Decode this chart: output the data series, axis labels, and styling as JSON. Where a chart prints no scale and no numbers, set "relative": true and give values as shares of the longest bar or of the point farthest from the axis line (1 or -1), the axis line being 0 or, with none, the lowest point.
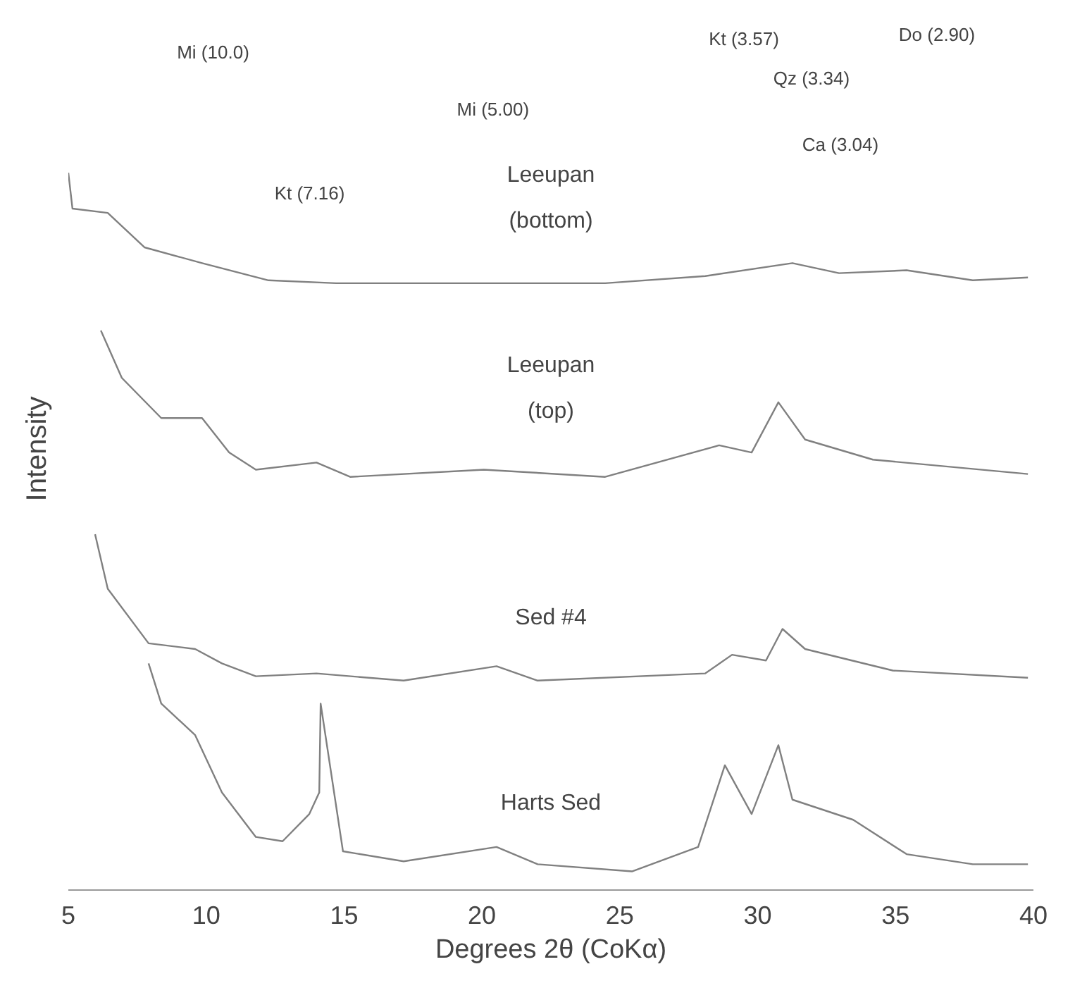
{
  "chart_data": {
    "type": "line",
    "relative": true,
    "xlabel": "Degrees 2θ (CoKα)",
    "ylabel": "Intensity",
    "xlim": [
      5,
      40
    ],
    "xticks": [
      5,
      10,
      15,
      20,
      25,
      30,
      35,
      40
    ],
    "grid": false,
    "marker": "none",
    "series": [
      {
        "name": "Leeupan (bottom)",
        "color": "#808080",
        "x": [
          5.0,
          5.15,
          6.43,
          7.76,
          9.85,
          12.26,
          14.71,
          19.56,
          24.47,
          28.1,
          31.26,
          32.95,
          35.4,
          37.8,
          39.8
        ],
        "values": [
          1.0,
          0.95,
          0.944,
          0.896,
          0.874,
          0.85,
          0.846,
          0.846,
          0.846,
          0.856,
          0.874,
          0.86,
          0.864,
          0.85,
          0.854
        ]
      },
      {
        "name": "Leeupan (top)",
        "color": "#808080",
        "x": [
          6.18,
          6.94,
          8.37,
          9.85,
          10.83,
          11.8,
          14.0,
          15.22,
          20.07,
          24.47,
          28.6,
          29.78,
          30.75,
          31.72,
          34.18,
          39.8
        ],
        "values": [
          0.78,
          0.714,
          0.658,
          0.658,
          0.61,
          0.586,
          0.596,
          0.576,
          0.586,
          0.576,
          0.62,
          0.61,
          0.68,
          0.628,
          0.6,
          0.58
        ]
      },
      {
        "name": "Sed #4",
        "color": "#808080",
        "x": [
          5.97,
          6.43,
          7.91,
          9.6,
          10.57,
          11.8,
          14.0,
          17.16,
          20.53,
          22.02,
          28.1,
          29.07,
          30.3,
          30.9,
          31.72,
          34.9,
          39.8
        ],
        "values": [
          0.496,
          0.42,
          0.344,
          0.336,
          0.316,
          0.298,
          0.302,
          0.292,
          0.312,
          0.292,
          0.302,
          0.328,
          0.32,
          0.364,
          0.336,
          0.306,
          0.296
        ]
      },
      {
        "name": "Harts Sed",
        "color": "#808080",
        "x": [
          7.91,
          8.37,
          9.6,
          10.57,
          11.8,
          12.77,
          13.74,
          14.1,
          14.15,
          14.96,
          17.16,
          20.53,
          22.02,
          25.44,
          27.84,
          28.81,
          29.78,
          30.75,
          31.26,
          33.46,
          35.4,
          37.8,
          39.8
        ],
        "values": [
          0.316,
          0.26,
          0.216,
          0.136,
          0.074,
          0.068,
          0.106,
          0.136,
          0.26,
          0.054,
          0.04,
          0.06,
          0.036,
          0.026,
          0.06,
          0.174,
          0.106,
          0.202,
          0.126,
          0.098,
          0.05,
          0.036,
          0.036
        ]
      }
    ],
    "annotations": [
      "Mi (10.0)",
      "Kt (3.57)",
      "Do (2.90)",
      "Qz (3.34)",
      "Mi (5.00)",
      "Ca (3.04)",
      "Kt (7.16)"
    ]
  }
}
